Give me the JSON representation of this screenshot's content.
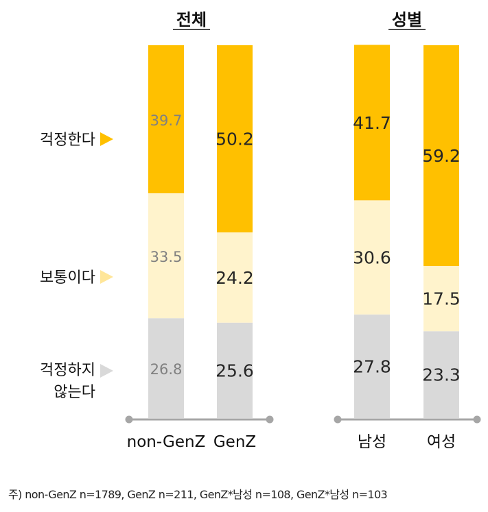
{
  "chart_data": {
    "type": "bar",
    "stacked": true,
    "panels": [
      {
        "title": "전체",
        "categories": [
          "non-GenZ",
          "GenZ"
        ],
        "series": [
          {
            "name": "걱정하지 않는다",
            "values": [
              26.8,
              25.6
            ],
            "color": "#d9d9d9"
          },
          {
            "name": "보통이다",
            "values": [
              33.5,
              24.2
            ],
            "color": "#fff3cc"
          },
          {
            "name": "걱정한다",
            "values": [
              39.7,
              50.2
            ],
            "color": "#ffc000"
          }
        ]
      },
      {
        "title": "성별",
        "categories": [
          "남성",
          "여성"
        ],
        "series": [
          {
            "name": "걱정하지 않는다",
            "values": [
              27.8,
              23.3
            ],
            "color": "#d9d9d9"
          },
          {
            "name": "보통이다",
            "values": [
              30.6,
              17.5
            ],
            "color": "#fff3cc"
          },
          {
            "name": "걱정한다",
            "values": [
              41.7,
              59.2
            ],
            "color": "#ffc000"
          }
        ]
      }
    ],
    "legend": [
      {
        "lines": [
          "걱정한다"
        ],
        "marker_color": "#ffc000"
      },
      {
        "lines": [
          "보통이다"
        ],
        "marker_color": "#ffe699"
      },
      {
        "lines": [
          "걱정하지",
          "않는다"
        ],
        "marker_color": "#d9d9d9"
      }
    ],
    "label_colors": {
      "muted": "#808080",
      "normal": "#262626"
    },
    "axis_color": "#a6a6a6",
    "note": "주) non-GenZ n=1789, GenZ n=211, GenZ*남성 n=108, GenZ*남성 n=103"
  }
}
